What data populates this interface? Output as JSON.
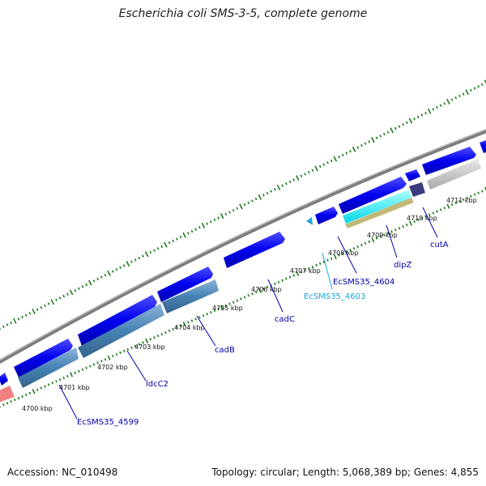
{
  "title": "Escherichia coli SMS-3-5, complete genome",
  "footer": {
    "accession": "Accession: NC_010498",
    "summary": "Topology: circular; Length: 5,068,389 bp; Genes: 4,855"
  },
  "colors": {
    "forward_gene": "#0000ee",
    "reverse_gene": "#4682b4",
    "backbone": "#808080",
    "ticks": "#1e7b1e",
    "label_blue": "#0000aa",
    "label_cyan": "#1aa7d6"
  },
  "ticks": [
    "4700 kbp",
    "4701 kbp",
    "4702 kbp",
    "4703 kbp",
    "4704 kbp",
    "4705 kbp",
    "4706 kbp",
    "4707 kbp",
    "4708 kbp",
    "4709 kbp",
    "4710 kbp",
    "4711 kbp"
  ],
  "gene_labels": [
    "EcSMS35_4599",
    "ldcC2",
    "cadB",
    "cadC",
    "EcSMS35_4603",
    "EcSMS35_4604",
    "dipZ",
    "cutA"
  ]
}
